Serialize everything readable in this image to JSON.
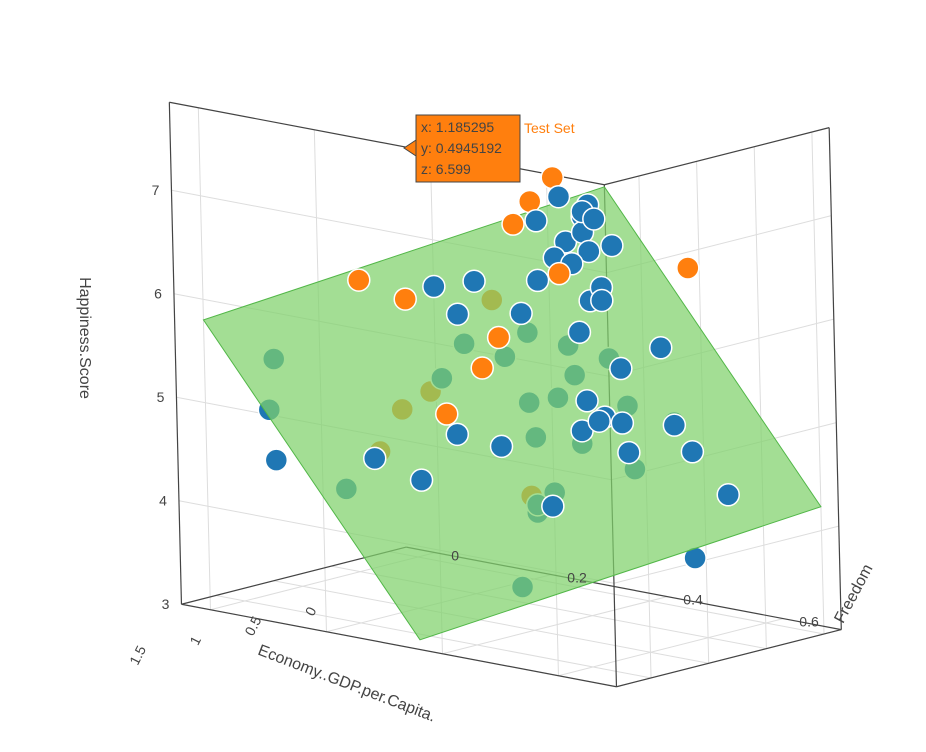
{
  "chart_data": {
    "type": "scatter",
    "subtype": "3d-scatter-with-regression-plane",
    "axes": {
      "x": {
        "label": "Economy..GDP.per.Capita.",
        "ticks": [
          "0",
          "0.5",
          "1",
          "1.5"
        ]
      },
      "y": {
        "label": "Freedom",
        "ticks": [
          "0",
          "0.2",
          "0.4",
          "0.6"
        ]
      },
      "z": {
        "label": "Happiness.Score",
        "ticks": [
          "3",
          "4",
          "5",
          "6",
          "7"
        ]
      }
    },
    "colors": {
      "train": "#1f77b4",
      "test": "#ff7f0e",
      "plane": "#7fd16b",
      "grid": "#dddddd",
      "axis_line": "#444444"
    },
    "series": [
      {
        "key": "train",
        "color": "#1f77b4",
        "points": [
          [
            0.2,
            0.22,
            3.0
          ],
          [
            0.05,
            0.55,
            4.2
          ],
          [
            0.1,
            0.5,
            3.55
          ],
          [
            0.32,
            0.3,
            3.9
          ],
          [
            0.45,
            0.3,
            3.95
          ],
          [
            0.7,
            0.35,
            4.0
          ],
          [
            1.35,
            0.15,
            4.2
          ],
          [
            0.55,
            0.35,
            4.15
          ],
          [
            0.7,
            0.15,
            4.1
          ],
          [
            0.85,
            0.1,
            4.3
          ],
          [
            0.6,
            0.5,
            4.55
          ],
          [
            0.75,
            0.3,
            4.6
          ],
          [
            0.88,
            0.25,
            4.7
          ],
          [
            1.45,
            0.05,
            4.4
          ],
          [
            0.95,
            0.4,
            4.85
          ],
          [
            0.8,
            0.45,
            4.8
          ],
          [
            0.5,
            0.55,
            5.0
          ],
          [
            0.45,
            0.45,
            4.9
          ],
          [
            0.65,
            0.58,
            5.1
          ],
          [
            0.9,
            0.55,
            5.3
          ],
          [
            1.0,
            0.4,
            5.2
          ],
          [
            1.5,
            0.05,
            4.9
          ],
          [
            1.25,
            0.3,
            5.4
          ],
          [
            1.3,
            0.35,
            5.8
          ],
          [
            1.7,
            0.1,
            5.5
          ],
          [
            1.1,
            0.5,
            5.6
          ],
          [
            1.2,
            0.4,
            5.7
          ],
          [
            1.15,
            0.5,
            5.9
          ],
          [
            1.05,
            0.55,
            5.8
          ],
          [
            1.0,
            0.45,
            5.3
          ],
          [
            1.25,
            0.45,
            6.0
          ],
          [
            1.35,
            0.35,
            6.1
          ],
          [
            1.3,
            0.45,
            6.2
          ],
          [
            1.2,
            0.55,
            6.4
          ],
          [
            1.4,
            0.5,
            6.6
          ],
          [
            1.35,
            0.55,
            6.8
          ],
          [
            1.45,
            0.4,
            6.5
          ],
          [
            1.3,
            0.3,
            6.3
          ],
          [
            1.5,
            0.55,
            6.9
          ],
          [
            1.45,
            0.6,
            7.0
          ],
          [
            1.5,
            0.6,
            7.2
          ],
          [
            1.6,
            0.62,
            7.4
          ],
          [
            1.55,
            0.62,
            7.5
          ],
          [
            1.55,
            0.58,
            7.1
          ],
          [
            1.4,
            0.6,
            7.3
          ],
          [
            1.7,
            0.6,
            7.6
          ],
          [
            1.65,
            0.55,
            7.3
          ],
          [
            1.4,
            0.58,
            7.35
          ],
          [
            1.25,
            0.6,
            7.0
          ],
          [
            1.1,
            0.55,
            6.5
          ],
          [
            0.95,
            0.52,
            6.3
          ],
          [
            1.05,
            0.5,
            6.0
          ],
          [
            0.85,
            0.6,
            5.9
          ],
          [
            0.8,
            0.52,
            5.6
          ],
          [
            0.75,
            0.45,
            5.2
          ],
          [
            0.6,
            0.45,
            5.0
          ],
          [
            0.55,
            0.4,
            4.8
          ],
          [
            0.5,
            0.42,
            4.9
          ],
          [
            0.4,
            0.45,
            4.6
          ],
          [
            0.35,
            0.55,
            4.7
          ]
        ]
      },
      {
        "key": "test",
        "color": "#ff7f0e",
        "points": [
          [
            0.22,
            0.1,
            4.55
          ],
          [
            0.6,
            0.32,
            4.1
          ],
          [
            1.3,
            0.2,
            4.6
          ],
          [
            1.2,
            0.22,
            5.0
          ],
          [
            1.35,
            0.3,
            5.3
          ],
          [
            1.25,
            0.4,
            5.9
          ],
          [
            1.05,
            0.12,
            6.1
          ],
          [
            0.6,
            0.6,
            6.6
          ],
          [
            1.185295,
            0.4945192,
            6.599
          ],
          [
            1.45,
            0.28,
            6.2
          ],
          [
            1.55,
            0.45,
            6.4
          ],
          [
            1.7,
            0.55,
            7.5
          ],
          [
            1.6,
            0.5,
            7.2
          ],
          [
            1.75,
            0.6,
            7.8
          ],
          [
            0.9,
            0.3,
            5.4
          ]
        ]
      }
    ],
    "regression_plane": {
      "z_at_origin": 2.2,
      "slope_x": 2.0,
      "slope_y": 2.9
    },
    "hover": {
      "x": "1.185295",
      "y": "0.4945192",
      "z": "6.599",
      "series_name": "Test Set"
    }
  },
  "tooltip": {
    "x_line": "x: 1.185295",
    "y_line": "y: 0.4945192",
    "z_line": "z: 6.599",
    "series_name": "Test Set"
  }
}
